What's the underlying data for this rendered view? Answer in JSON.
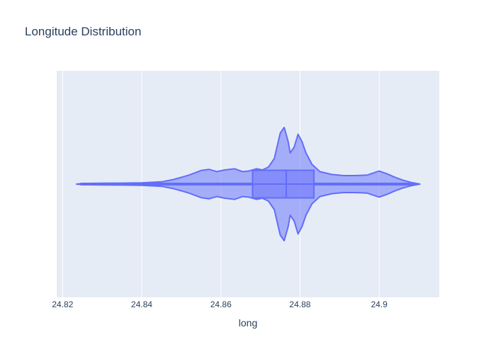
{
  "chart_data": {
    "type": "violin",
    "title": "Longitude Distribution",
    "xlabel": "long",
    "ylabel": "",
    "xlim": [
      24.8185,
      24.9152
    ],
    "xticks": [
      24.82,
      24.84,
      24.86,
      24.88,
      24.9
    ],
    "xtick_labels": [
      "24.82",
      "24.84",
      "24.86",
      "24.88",
      "24.9"
    ],
    "grid": true,
    "colors": {
      "plot_bg": "#e5ecf6",
      "grid": "#ffffff",
      "violin_fill": "#636efa",
      "violin_line": "#636efa",
      "text": "#2a3f5f"
    },
    "box": {
      "min": 24.8245,
      "q1": 24.868,
      "median": 24.8765,
      "q3": 24.8835,
      "max": 24.9085
    },
    "range": [
      24.8235,
      24.9103
    ],
    "density": [
      [
        24.8235,
        0.0
      ],
      [
        24.825,
        0.01
      ],
      [
        24.83,
        0.015
      ],
      [
        24.835,
        0.018
      ],
      [
        24.84,
        0.022
      ],
      [
        24.845,
        0.04
      ],
      [
        24.848,
        0.08
      ],
      [
        24.85,
        0.12
      ],
      [
        24.852,
        0.16
      ],
      [
        24.855,
        0.24
      ],
      [
        24.857,
        0.26
      ],
      [
        24.859,
        0.22
      ],
      [
        24.861,
        0.25
      ],
      [
        24.8635,
        0.27
      ],
      [
        24.8655,
        0.22
      ],
      [
        24.867,
        0.23
      ],
      [
        24.869,
        0.27
      ],
      [
        24.8705,
        0.25
      ],
      [
        24.872,
        0.3
      ],
      [
        24.8735,
        0.45
      ],
      [
        24.875,
        0.9
      ],
      [
        24.876,
        1.0
      ],
      [
        24.877,
        0.75
      ],
      [
        24.8775,
        0.55
      ],
      [
        24.8785,
        0.65
      ],
      [
        24.8795,
        0.88
      ],
      [
        24.8805,
        0.75
      ],
      [
        24.8815,
        0.55
      ],
      [
        24.883,
        0.35
      ],
      [
        24.885,
        0.22
      ],
      [
        24.888,
        0.17
      ],
      [
        24.891,
        0.15
      ],
      [
        24.894,
        0.15
      ],
      [
        24.897,
        0.16
      ],
      [
        24.9,
        0.23
      ],
      [
        24.902,
        0.18
      ],
      [
        24.904,
        0.12
      ],
      [
        24.906,
        0.07
      ],
      [
        24.908,
        0.03
      ],
      [
        24.9103,
        0.0
      ]
    ]
  }
}
